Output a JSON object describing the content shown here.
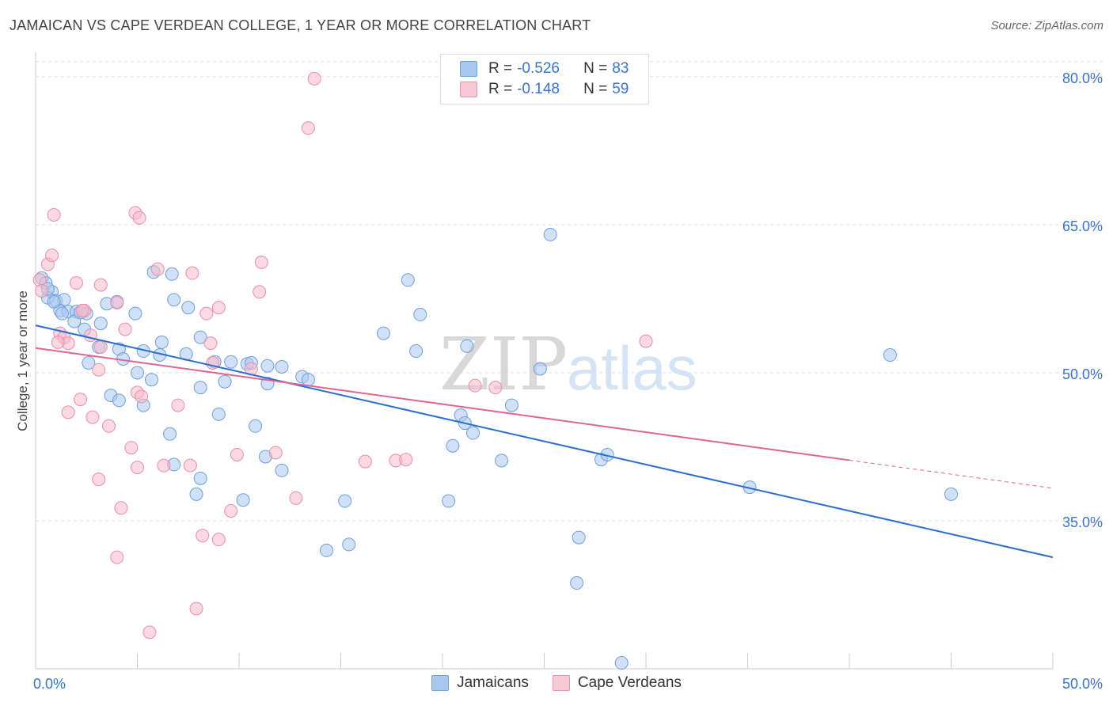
{
  "title": "JAMAICAN VS CAPE VERDEAN COLLEGE, 1 YEAR OR MORE CORRELATION CHART",
  "source": "Source: ZipAtlas.com",
  "watermark": {
    "zip": "ZIP",
    "atlas": "atlas"
  },
  "colors": {
    "blue_fill": "#a9c8f0",
    "blue_stroke": "#6f9fd8",
    "blue_line": "#2a6fcf",
    "pink_fill": "#f7b9cb",
    "pink_stroke": "#e98eab",
    "pink_line": "#e0648f",
    "tick_label": "#3b73c8",
    "grid": "#dddddd"
  },
  "legend": {
    "rows": [
      {
        "r_label": "R =",
        "r_value": "-0.526",
        "n_label": "N =",
        "n_value": "83",
        "series": "blue"
      },
      {
        "r_label": "R =",
        "r_value": "-0.148",
        "n_label": "N =",
        "n_value": "59",
        "series": "pink"
      }
    ]
  },
  "chart_data": {
    "type": "scatter",
    "ylabel": "College, 1 year or more",
    "xlim": [
      0,
      50
    ],
    "ylim": [
      20,
      82
    ],
    "x_tick_labels": [
      {
        "value": 0,
        "label": "0.0%"
      },
      {
        "value": 50,
        "label": "50.0%"
      }
    ],
    "y_tick_labels": [
      {
        "value": 80,
        "label": "80.0%"
      },
      {
        "value": 65,
        "label": "65.0%"
      },
      {
        "value": 50,
        "label": "50.0%"
      },
      {
        "value": 35,
        "label": "35.0%"
      }
    ],
    "grid": "horizontal dashed",
    "series": [
      {
        "name": "Jamaicans",
        "color": "blue",
        "trend": {
          "x": [
            0,
            50
          ],
          "y": [
            54.8,
            31.3
          ],
          "dashed_from": null
        },
        "points": [
          [
            0.3,
            59.6
          ],
          [
            0.5,
            59.1
          ],
          [
            0.8,
            58.2
          ],
          [
            0.6,
            57.6
          ],
          [
            1.0,
            57.3
          ],
          [
            1.4,
            57.4
          ],
          [
            1.2,
            56.3
          ],
          [
            1.6,
            56.2
          ],
          [
            2.0,
            56.2
          ],
          [
            1.3,
            56.0
          ],
          [
            2.5,
            56.0
          ],
          [
            1.9,
            55.2
          ],
          [
            2.4,
            54.4
          ],
          [
            3.5,
            57.0
          ],
          [
            4.0,
            57.2
          ],
          [
            3.2,
            55.0
          ],
          [
            4.9,
            56.0
          ],
          [
            5.8,
            60.2
          ],
          [
            6.7,
            60.0
          ],
          [
            6.8,
            57.4
          ],
          [
            7.5,
            56.6
          ],
          [
            8.1,
            53.6
          ],
          [
            6.2,
            53.1
          ],
          [
            3.1,
            52.6
          ],
          [
            4.1,
            52.4
          ],
          [
            5.3,
            52.2
          ],
          [
            6.1,
            51.8
          ],
          [
            4.3,
            51.4
          ],
          [
            2.6,
            51.0
          ],
          [
            5.0,
            50.0
          ],
          [
            7.4,
            51.9
          ],
          [
            8.8,
            51.1
          ],
          [
            9.6,
            51.1
          ],
          [
            10.4,
            50.9
          ],
          [
            10.6,
            51.0
          ],
          [
            11.4,
            50.7
          ],
          [
            12.1,
            50.6
          ],
          [
            13.1,
            49.6
          ],
          [
            13.4,
            49.3
          ],
          [
            5.7,
            49.3
          ],
          [
            8.1,
            48.5
          ],
          [
            11.4,
            48.9
          ],
          [
            9.3,
            49.1
          ],
          [
            3.7,
            47.7
          ],
          [
            4.1,
            47.2
          ],
          [
            5.3,
            46.7
          ],
          [
            9.0,
            45.8
          ],
          [
            10.8,
            44.6
          ],
          [
            6.6,
            43.8
          ],
          [
            6.8,
            40.7
          ],
          [
            8.1,
            39.3
          ],
          [
            7.9,
            37.7
          ],
          [
            10.2,
            37.1
          ],
          [
            11.3,
            41.5
          ],
          [
            12.1,
            40.1
          ],
          [
            15.2,
            37.0
          ],
          [
            14.3,
            32.0
          ],
          [
            15.4,
            32.6
          ],
          [
            17.1,
            54.0
          ],
          [
            18.3,
            59.4
          ],
          [
            18.7,
            52.2
          ],
          [
            18.9,
            55.9
          ],
          [
            20.3,
            37.0
          ],
          [
            20.5,
            42.6
          ],
          [
            20.9,
            45.7
          ],
          [
            21.1,
            44.9
          ],
          [
            21.5,
            43.9
          ],
          [
            21.2,
            52.7
          ],
          [
            22.9,
            41.1
          ],
          [
            23.4,
            46.7
          ],
          [
            24.8,
            50.4
          ],
          [
            25.3,
            64.0
          ],
          [
            26.7,
            33.3
          ],
          [
            27.8,
            41.2
          ],
          [
            28.1,
            41.7
          ],
          [
            26.6,
            28.7
          ],
          [
            35.1,
            38.4
          ],
          [
            42.0,
            51.8
          ],
          [
            45.0,
            37.7
          ],
          [
            28.8,
            20.6
          ],
          [
            0.6,
            58.5
          ],
          [
            0.9,
            57.2
          ],
          [
            2.2,
            56.1
          ]
        ]
      },
      {
        "name": "Cape Verdeans",
        "color": "pink",
        "trend": {
          "x": [
            0,
            50
          ],
          "y": [
            52.5,
            38.3
          ],
          "dashed_from": 40
        },
        "points": [
          [
            0.2,
            59.4
          ],
          [
            0.3,
            58.3
          ],
          [
            0.6,
            61.0
          ],
          [
            0.8,
            61.9
          ],
          [
            0.9,
            66.0
          ],
          [
            1.2,
            54.0
          ],
          [
            1.4,
            53.6
          ],
          [
            1.6,
            53.0
          ],
          [
            1.1,
            53.1
          ],
          [
            1.6,
            46.0
          ],
          [
            2.0,
            59.1
          ],
          [
            2.2,
            47.3
          ],
          [
            2.4,
            56.3
          ],
          [
            2.7,
            53.8
          ],
          [
            2.8,
            45.5
          ],
          [
            3.1,
            50.3
          ],
          [
            3.2,
            52.6
          ],
          [
            3.2,
            58.9
          ],
          [
            3.1,
            39.2
          ],
          [
            3.6,
            44.6
          ],
          [
            4.4,
            54.4
          ],
          [
            4.0,
            57.1
          ],
          [
            4.2,
            36.3
          ],
          [
            4.9,
            66.2
          ],
          [
            5.1,
            65.7
          ],
          [
            4.7,
            42.4
          ],
          [
            5.0,
            40.4
          ],
          [
            5.0,
            48.0
          ],
          [
            4.0,
            31.3
          ],
          [
            5.2,
            47.6
          ],
          [
            6.0,
            60.5
          ],
          [
            6.3,
            40.6
          ],
          [
            7.0,
            46.7
          ],
          [
            7.6,
            40.6
          ],
          [
            7.7,
            60.1
          ],
          [
            8.4,
            56.0
          ],
          [
            8.7,
            51.0
          ],
          [
            9.0,
            56.6
          ],
          [
            8.2,
            33.5
          ],
          [
            9.0,
            33.1
          ],
          [
            7.9,
            26.1
          ],
          [
            5.6,
            23.7
          ],
          [
            9.6,
            36.0
          ],
          [
            9.9,
            41.7
          ],
          [
            10.6,
            50.4
          ],
          [
            11.1,
            61.2
          ],
          [
            11.0,
            58.2
          ],
          [
            11.8,
            41.9
          ],
          [
            12.8,
            37.3
          ],
          [
            13.4,
            74.8
          ],
          [
            13.7,
            79.8
          ],
          [
            16.2,
            41.0
          ],
          [
            17.7,
            41.1
          ],
          [
            18.2,
            41.2
          ],
          [
            21.6,
            48.7
          ],
          [
            22.6,
            48.5
          ],
          [
            30.0,
            53.2
          ],
          [
            8.6,
            53.0
          ],
          [
            2.3,
            56.3
          ]
        ]
      }
    ]
  }
}
